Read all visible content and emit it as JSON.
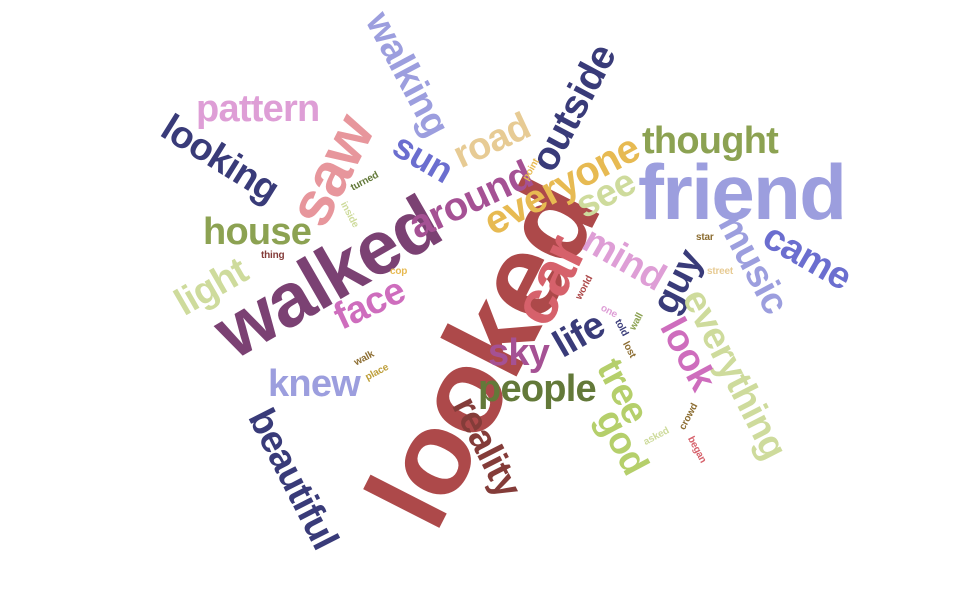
{
  "cloud": {
    "words": [
      {
        "text": "looked",
        "color": "#ad494a"
      },
      {
        "text": "walked",
        "color": "#7b4173"
      },
      {
        "text": "friend",
        "color": "#9c9ede"
      },
      {
        "text": "car",
        "color": "#d6616b"
      },
      {
        "text": "saw",
        "color": "#e7969c"
      },
      {
        "text": "everyone",
        "color": "#e7ba52"
      },
      {
        "text": "around",
        "color": "#a55194"
      },
      {
        "text": "outside",
        "color": "#393b79"
      },
      {
        "text": "walking",
        "color": "#9c9ede"
      },
      {
        "text": "pattern",
        "color": "#de9ed6"
      },
      {
        "text": "looking",
        "color": "#393b79"
      },
      {
        "text": "thought",
        "color": "#8ca252"
      },
      {
        "text": "road",
        "color": "#e7cb94"
      },
      {
        "text": "sun",
        "color": "#6b6ecf"
      },
      {
        "text": "see",
        "color": "#cedb9c"
      },
      {
        "text": "house",
        "color": "#8ca252"
      },
      {
        "text": "came",
        "color": "#6b6ecf"
      },
      {
        "text": "music",
        "color": "#9c9ede"
      },
      {
        "text": "mind",
        "color": "#de9ed6"
      },
      {
        "text": "light",
        "color": "#cedb9c"
      },
      {
        "text": "face",
        "color": "#ce6dbd"
      },
      {
        "text": "guy",
        "color": "#393b79"
      },
      {
        "text": "everything",
        "color": "#cedb9c"
      },
      {
        "text": "life",
        "color": "#393b79"
      },
      {
        "text": "sky",
        "color": "#a55194"
      },
      {
        "text": "look",
        "color": "#ce6dbd"
      },
      {
        "text": "knew",
        "color": "#9c9ede"
      },
      {
        "text": "people",
        "color": "#637939"
      },
      {
        "text": "tree",
        "color": "#b5cf6b"
      },
      {
        "text": "god",
        "color": "#b5cf6b"
      },
      {
        "text": "reality",
        "color": "#843c39"
      },
      {
        "text": "beautiful",
        "color": "#393b79"
      },
      {
        "text": "turned",
        "color": "#637939"
      },
      {
        "text": "inside",
        "color": "#cedb9c"
      },
      {
        "text": "point",
        "color": "#e7ba52"
      },
      {
        "text": "thing",
        "color": "#843c39"
      },
      {
        "text": "star",
        "color": "#8c6d31"
      },
      {
        "text": "street",
        "color": "#e7cb94"
      },
      {
        "text": "cop",
        "color": "#e7ba52"
      },
      {
        "text": "world",
        "color": "#ad494a"
      },
      {
        "text": "one",
        "color": "#de9ed6"
      },
      {
        "text": "told",
        "color": "#393b79"
      },
      {
        "text": "wall",
        "color": "#8ca252"
      },
      {
        "text": "lost",
        "color": "#8c6d31"
      },
      {
        "text": "walk",
        "color": "#8c6d31"
      },
      {
        "text": "place",
        "color": "#bd9e39"
      },
      {
        "text": "asked",
        "color": "#cedb9c"
      },
      {
        "text": "crowd",
        "color": "#8c6d31"
      },
      {
        "text": "began",
        "color": "#d6616b"
      }
    ]
  }
}
